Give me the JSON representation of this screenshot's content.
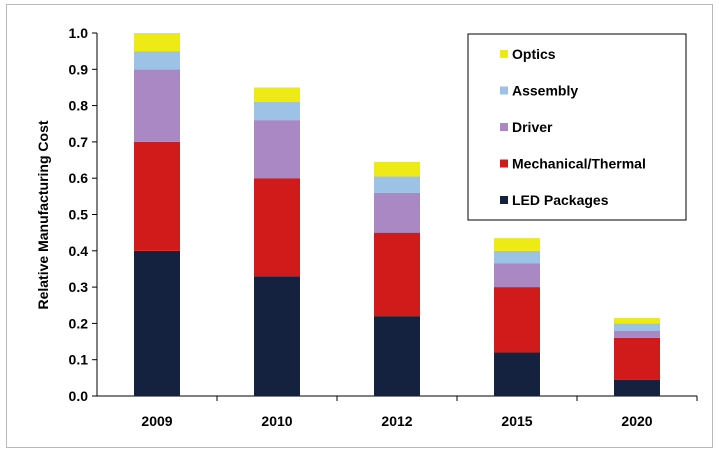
{
  "chart_data": {
    "type": "bar",
    "stacked": true,
    "title": "",
    "xlabel": "",
    "ylabel": "Relative Manufacturing Cost",
    "ylim": [
      0,
      1.0
    ],
    "yticks": [
      "0.0",
      "0.1",
      "0.2",
      "0.3",
      "0.4",
      "0.5",
      "0.6",
      "0.7",
      "0.8",
      "0.9",
      "1.0"
    ],
    "grid": false,
    "legend_position": "top-right",
    "categories": [
      "2009",
      "2010",
      "2012",
      "2015",
      "2020"
    ],
    "series": [
      {
        "name": "LED Packages",
        "color": "#14213f",
        "values": [
          0.4,
          0.33,
          0.22,
          0.12,
          0.045
        ]
      },
      {
        "name": "Mechanical/Thermal",
        "color": "#d11a1a",
        "values": [
          0.3,
          0.27,
          0.23,
          0.18,
          0.115
        ]
      },
      {
        "name": "Driver",
        "color": "#aa88c4",
        "values": [
          0.2,
          0.16,
          0.11,
          0.065,
          0.02
        ]
      },
      {
        "name": "Assembly",
        "color": "#9cc3e6",
        "values": [
          0.05,
          0.05,
          0.045,
          0.035,
          0.02
        ]
      },
      {
        "name": "Optics",
        "color": "#eeea15",
        "values": [
          0.05,
          0.04,
          0.04,
          0.035,
          0.015
        ]
      }
    ],
    "legend_order": [
      "Optics",
      "Assembly",
      "Driver",
      "Mechanical/Thermal",
      "LED Packages"
    ]
  }
}
